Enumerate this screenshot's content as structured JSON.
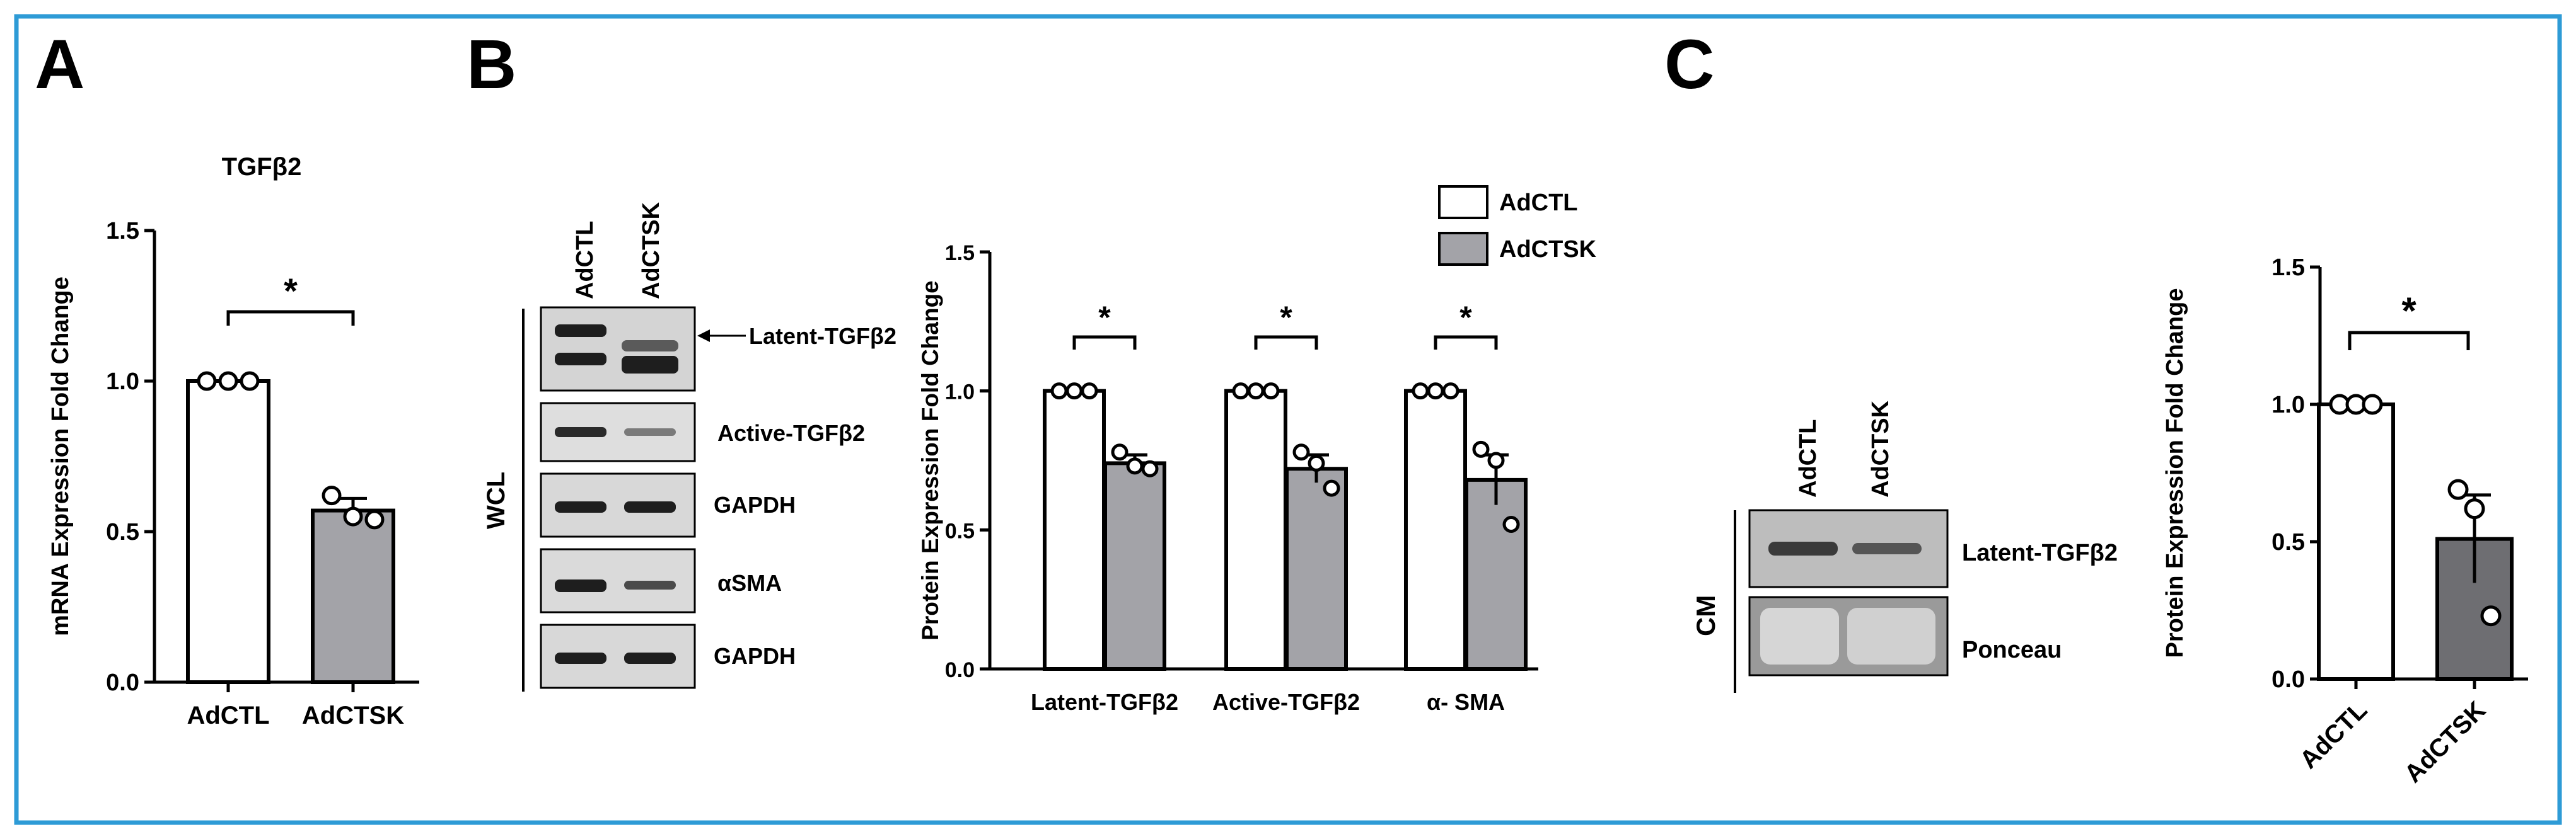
{
  "colors": {
    "frame": "#2e9bd6",
    "bar_control": "#ffffff",
    "bar_treated_light": "#a3a3a8",
    "bar_treated_dark": "#6e6e72",
    "band": "#1e1e1e",
    "blot_bg": "#dcdcdc",
    "ponceau_bg": "#9a9a9a",
    "marker": "#ffffff",
    "ink": "#000000"
  },
  "panels": {
    "a": {
      "letter": "A",
      "title": "TGFβ2"
    },
    "b": {
      "letter": "B",
      "blot_group_label": "WCL",
      "lane_labels": [
        "AdCTL",
        "AdCTSK"
      ],
      "row_labels": [
        "Latent-TGFβ2",
        "Active-TGFβ2",
        "GAPDH",
        "αSMA",
        "GAPDH"
      ],
      "legend": [
        "AdCTL",
        "AdCTSK"
      ]
    },
    "c": {
      "letter": "C",
      "blot_group_label": "CM",
      "lane_labels": [
        "AdCTL",
        "AdCTSK"
      ],
      "row_labels": [
        "Latent-TGFβ2",
        "Ponceau"
      ]
    }
  },
  "chart_data": [
    {
      "type": "bar",
      "title": "TGFβ2",
      "ylabel": "mRNA Expression Fold Change",
      "xlabel": "",
      "ylim": [
        0,
        1.5
      ],
      "yticks": [
        "0.0",
        "0.5",
        "1.0",
        "1.5"
      ],
      "categories": [
        "AdCTL",
        "AdCTSK"
      ],
      "values": [
        1.0,
        0.57
      ],
      "errors": [
        0,
        0.04
      ],
      "points": [
        [
          1.0,
          1.0,
          1.0
        ],
        [
          0.62,
          0.55,
          0.54
        ]
      ],
      "significance": [
        "*"
      ],
      "grid": false
    },
    {
      "type": "bar",
      "ylabel": "Protein Expression Fold Change",
      "xlabel": "",
      "ylim": [
        0,
        1.5
      ],
      "yticks": [
        "0.0",
        "0.5",
        "1.0",
        "1.5"
      ],
      "categories": [
        "Latent-TGFβ2",
        "Active-TGFβ2",
        "α- SMA"
      ],
      "series": [
        {
          "name": "AdCTL",
          "values": [
            1.0,
            1.0,
            1.0
          ],
          "errors": [
            0,
            0,
            0
          ],
          "points": [
            [
              1.0,
              1.0,
              1.0
            ],
            [
              1.0,
              1.0,
              1.0
            ],
            [
              1.0,
              1.0,
              1.0
            ]
          ]
        },
        {
          "name": "AdCTSK",
          "values": [
            0.74,
            0.72,
            0.68
          ],
          "errors": [
            0.03,
            0.05,
            0.09
          ],
          "points": [
            [
              0.78,
              0.73,
              0.72
            ],
            [
              0.78,
              0.74,
              0.65
            ],
            [
              0.79,
              0.75,
              0.52
            ]
          ]
        }
      ],
      "significance": [
        "*",
        "*",
        "*"
      ],
      "legend": "top-right",
      "grid": false
    },
    {
      "type": "bar",
      "ylabel": "Protein Expression Fold Change",
      "xlabel": "",
      "ylim": [
        0,
        1.5
      ],
      "yticks": [
        "0.0",
        "0.5",
        "1.0",
        "1.5"
      ],
      "categories": [
        "AdCTL",
        "AdCTSK"
      ],
      "values": [
        1.0,
        0.51
      ],
      "errors": [
        0,
        0.16
      ],
      "points": [
        [
          1.0,
          1.0,
          1.0
        ],
        [
          0.69,
          0.62,
          0.23
        ]
      ],
      "significance": [
        "*"
      ],
      "grid": false
    }
  ]
}
